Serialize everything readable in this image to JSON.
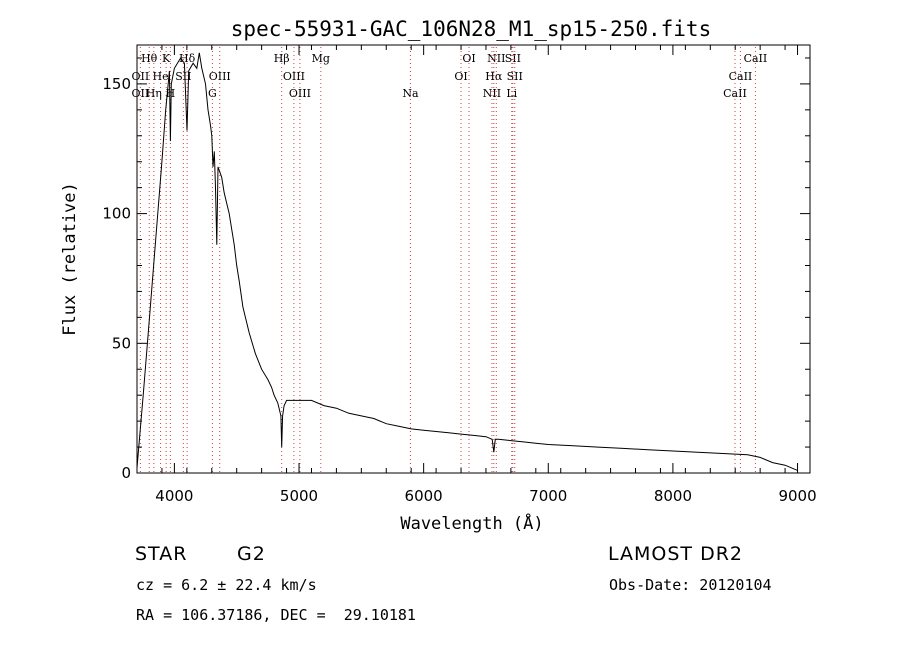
{
  "chart_data": {
    "type": "line",
    "title": "spec-55931-GAC_106N28_M1_sp15-250.fits",
    "xlabel": "Wavelength (Å)",
    "ylabel": "Flux (relative)",
    "xlim": [
      3700,
      9100
    ],
    "ylim": [
      0,
      165
    ],
    "xticks": [
      4000,
      5000,
      6000,
      7000,
      8000,
      9000
    ],
    "yticks": [
      0,
      50,
      100,
      150
    ],
    "grid": false,
    "series": [
      {
        "points": [
          [
            3700,
            2
          ],
          [
            3750,
            30
          ],
          [
            3800,
            60
          ],
          [
            3850,
            90
          ],
          [
            3900,
            120
          ],
          [
            3930,
            140
          ],
          [
            3950,
            150
          ],
          [
            3960,
            155
          ],
          [
            3968,
            128
          ],
          [
            3975,
            150
          ],
          [
            4000,
            156
          ],
          [
            4050,
            160
          ],
          [
            4080,
            158
          ],
          [
            4101,
            132
          ],
          [
            4115,
            155
          ],
          [
            4150,
            158
          ],
          [
            4180,
            156
          ],
          [
            4200,
            162
          ],
          [
            4220,
            156
          ],
          [
            4250,
            150
          ],
          [
            4270,
            140
          ],
          [
            4290,
            134
          ],
          [
            4300,
            130
          ],
          [
            4310,
            118
          ],
          [
            4320,
            124
          ],
          [
            4330,
            110
          ],
          [
            4340,
            88
          ],
          [
            4350,
            118
          ],
          [
            4380,
            114
          ],
          [
            4400,
            108
          ],
          [
            4420,
            104
          ],
          [
            4440,
            100
          ],
          [
            4460,
            94
          ],
          [
            4480,
            88
          ],
          [
            4500,
            80
          ],
          [
            4520,
            74
          ],
          [
            4550,
            64
          ],
          [
            4600,
            54
          ],
          [
            4650,
            46
          ],
          [
            4700,
            40
          ],
          [
            4750,
            36
          ],
          [
            4780,
            33
          ],
          [
            4800,
            30
          ],
          [
            4830,
            27
          ],
          [
            4855,
            22
          ],
          [
            4861,
            10
          ],
          [
            4868,
            22
          ],
          [
            4880,
            26
          ],
          [
            4900,
            28
          ],
          [
            5000,
            28
          ],
          [
            5100,
            28
          ],
          [
            5200,
            26
          ],
          [
            5300,
            25
          ],
          [
            5400,
            23
          ],
          [
            5500,
            22
          ],
          [
            5600,
            21
          ],
          [
            5700,
            19
          ],
          [
            5800,
            18
          ],
          [
            5900,
            17
          ],
          [
            6000,
            16.5
          ],
          [
            6100,
            16
          ],
          [
            6200,
            15.5
          ],
          [
            6300,
            15
          ],
          [
            6400,
            14.5
          ],
          [
            6500,
            14
          ],
          [
            6550,
            13
          ],
          [
            6563,
            8
          ],
          [
            6575,
            13
          ],
          [
            6600,
            13
          ],
          [
            6700,
            12.5
          ],
          [
            6800,
            12
          ],
          [
            6900,
            11.5
          ],
          [
            7000,
            11
          ],
          [
            7200,
            10.5
          ],
          [
            7400,
            10
          ],
          [
            7600,
            9.5
          ],
          [
            7800,
            9
          ],
          [
            8000,
            8.5
          ],
          [
            8200,
            8
          ],
          [
            8400,
            7.5
          ],
          [
            8600,
            7
          ],
          [
            8700,
            6
          ],
          [
            8800,
            4
          ],
          [
            8900,
            3
          ],
          [
            9000,
            1
          ]
        ]
      }
    ],
    "lines": [
      {
        "name": "Hθ",
        "wave": 3798,
        "tier": 0
      },
      {
        "name": "OII",
        "wave": 3727,
        "tier": 1
      },
      {
        "name": "OII",
        "wave": 3727,
        "tier": 2
      },
      {
        "name": "He",
        "wave": 3889,
        "tier": 1
      },
      {
        "name": "Hη",
        "wave": 3835,
        "tier": 2
      },
      {
        "name": "K",
        "wave": 3934,
        "tier": 0
      },
      {
        "name": "H",
        "wave": 3968,
        "tier": 2
      },
      {
        "name": "SII",
        "wave": 4072,
        "tier": 1
      },
      {
        "name": "Hδ",
        "wave": 4102,
        "tier": 0
      },
      {
        "name": "OIII",
        "wave": 4364,
        "tier": 1
      },
      {
        "name": "G",
        "wave": 4305,
        "tier": 2
      },
      {
        "name": "Hβ",
        "wave": 4861,
        "tier": 0
      },
      {
        "name": "OIII",
        "wave": 4959,
        "tier": 1
      },
      {
        "name": "OIII",
        "wave": 5007,
        "tier": 2
      },
      {
        "name": "Mg",
        "wave": 5175,
        "tier": 0
      },
      {
        "name": "Na",
        "wave": 5894,
        "tier": 2
      },
      {
        "name": "OI",
        "wave": 6364,
        "tier": 0
      },
      {
        "name": "OI",
        "wave": 6300,
        "tier": 1
      },
      {
        "name": "NII",
        "wave": 6548,
        "tier": 2
      },
      {
        "name": "NII",
        "wave": 6583,
        "tier": 0
      },
      {
        "name": "Hα",
        "wave": 6563,
        "tier": 1
      },
      {
        "name": "SII",
        "wave": 6716,
        "tier": 0
      },
      {
        "name": "SII",
        "wave": 6731,
        "tier": 1
      },
      {
        "name": "Li",
        "wave": 6707,
        "tier": 2
      },
      {
        "name": "CaII",
        "wave": 8662,
        "tier": 0
      },
      {
        "name": "CaII",
        "wave": 8542,
        "tier": 1
      },
      {
        "name": "CaII",
        "wave": 8498,
        "tier": 2
      }
    ]
  },
  "info": {
    "object_class": "STAR",
    "subclass": "G2",
    "survey": "LAMOST DR2",
    "cz": "cz = 6.2 ± 22.4 km/s",
    "obs_date": "Obs-Date: 20120104",
    "coords": "RA = 106.37186, DEC =  29.10181"
  }
}
